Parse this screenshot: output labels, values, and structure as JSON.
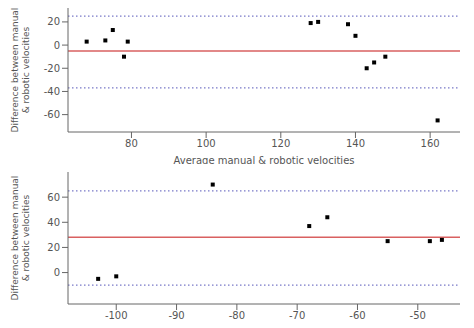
{
  "chart_data": [
    {
      "type": "scatter",
      "x": [
        68,
        73,
        75,
        78,
        79,
        128,
        130,
        138,
        140,
        143,
        145,
        148,
        162
      ],
      "values": [
        3,
        4,
        13,
        -10,
        3,
        19,
        20,
        18,
        8,
        -20,
        -15,
        -10,
        -65
      ],
      "color": "black",
      "reference_lines": [
        {
          "y": -5,
          "color": "#d96060",
          "line_style": "solid"
        },
        {
          "y": 25,
          "color": "#7878c8",
          "line_style": "dotted"
        },
        {
          "y": -37,
          "color": "#7878c8",
          "line_style": "dotted"
        }
      ],
      "xlim": [
        63,
        168
      ],
      "ylim": [
        -75,
        32
      ],
      "xticks": [
        80,
        100,
        120,
        140,
        160
      ],
      "yticks": [
        -60,
        -40,
        -20,
        0,
        20
      ],
      "xlabel": "Average manual & robotic velocities",
      "ylabel": "Difference between manual\n& robotic velocities",
      "grid": false
    },
    {
      "type": "scatter",
      "x": [
        -103,
        -100,
        -84,
        -68,
        -65,
        -55,
        -48,
        -46
      ],
      "values": [
        -5,
        -3,
        70,
        37,
        44,
        25,
        25,
        26
      ],
      "color": "black",
      "reference_lines": [
        {
          "y": 28,
          "color": "#d96060",
          "line_style": "solid"
        },
        {
          "y": 65,
          "color": "#7878c8",
          "line_style": "dotted"
        },
        {
          "y": -10,
          "color": "#7878c8",
          "line_style": "dotted"
        }
      ],
      "xlim": [
        -108,
        -43
      ],
      "ylim": [
        -25,
        80
      ],
      "xticks": [
        -100,
        -90,
        -80,
        -70,
        -60,
        -50
      ],
      "yticks": [
        0,
        20,
        40,
        60
      ],
      "ylabel": "Difference between manual\n& robotic velocities",
      "grid": false
    }
  ]
}
